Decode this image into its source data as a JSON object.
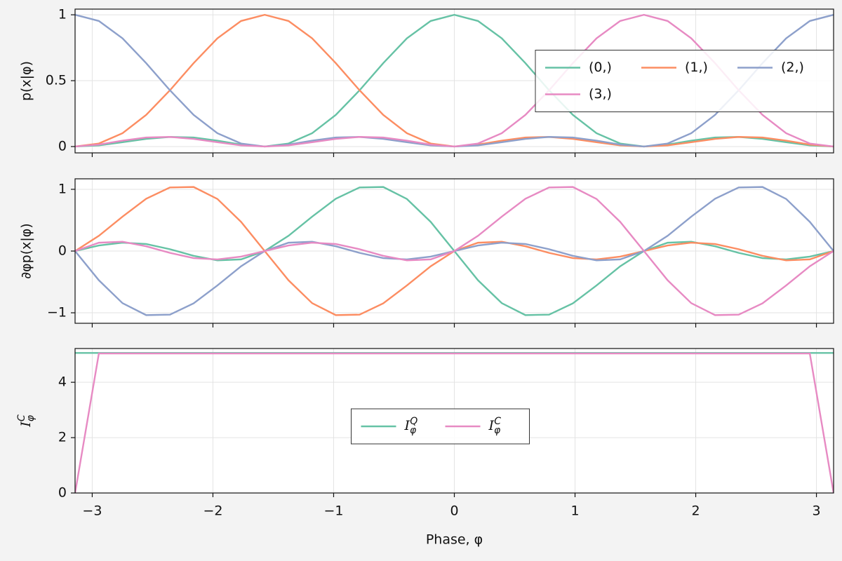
{
  "chart_data": [
    {
      "type": "line",
      "ylabel": "p(x|φ)",
      "legend_loc": "center right",
      "legend_ncol": 3,
      "grid": true,
      "xlim": [
        -3.142,
        3.142
      ],
      "xticks": [
        {
          "value": -3,
          "label": "−3"
        },
        {
          "value": -2,
          "label": "−2"
        },
        {
          "value": -1,
          "label": "−1"
        },
        0,
        1,
        2,
        3
      ],
      "ylim": [
        -0.048,
        1.043
      ],
      "yticks": [
        0,
        0.5,
        1
      ],
      "x": [
        -3.142,
        -2.945,
        -2.749,
        -2.553,
        -2.356,
        -2.16,
        -1.963,
        -1.767,
        -1.571,
        -1.374,
        -1.178,
        -0.982,
        -0.785,
        -0.589,
        -0.393,
        -0.196,
        0,
        0.196,
        0.393,
        0.589,
        0.785,
        0.982,
        1.178,
        1.374,
        1.571,
        1.767,
        1.963,
        2.16,
        2.356,
        2.553,
        2.749,
        2.945,
        3.142
      ],
      "series": [
        {
          "name": "(0,)",
          "color": "#66c2a5",
          "values": [
            0,
            0.009,
            0.033,
            0.058,
            0.073,
            0.069,
            0.045,
            0.015,
            0,
            0.023,
            0.101,
            0.24,
            0.427,
            0.633,
            0.821,
            0.953,
            1,
            0.953,
            0.821,
            0.633,
            0.427,
            0.24,
            0.101,
            0.023,
            0,
            0.015,
            0.045,
            0.069,
            0.073,
            0.058,
            0.033,
            0.009,
            0
          ]
        },
        {
          "name": "(1,)",
          "color": "#fc8d62",
          "values": [
            0,
            0.023,
            0.101,
            0.24,
            0.427,
            0.633,
            0.821,
            0.953,
            1,
            0.953,
            0.821,
            0.633,
            0.427,
            0.24,
            0.101,
            0.023,
            0,
            0.015,
            0.045,
            0.069,
            0.073,
            0.058,
            0.033,
            0.009,
            0,
            0.009,
            0.033,
            0.058,
            0.073,
            0.069,
            0.045,
            0.015,
            0
          ]
        },
        {
          "name": "(2,)",
          "color": "#8da0cb",
          "values": [
            1,
            0.953,
            0.821,
            0.633,
            0.427,
            0.24,
            0.101,
            0.023,
            0,
            0.015,
            0.045,
            0.069,
            0.073,
            0.058,
            0.033,
            0.009,
            0,
            0.009,
            0.033,
            0.058,
            0.073,
            0.069,
            0.045,
            0.015,
            0,
            0.023,
            0.101,
            0.24,
            0.427,
            0.633,
            0.821,
            0.953,
            1
          ]
        },
        {
          "name": "(3,)",
          "color": "#e78ac3",
          "values": [
            0,
            0.015,
            0.045,
            0.069,
            0.073,
            0.058,
            0.033,
            0.009,
            0,
            0.009,
            0.033,
            0.058,
            0.073,
            0.069,
            0.045,
            0.015,
            0,
            0.023,
            0.101,
            0.24,
            0.427,
            0.633,
            0.821,
            0.953,
            1,
            0.953,
            0.821,
            0.633,
            0.427,
            0.24,
            0.101,
            0.023,
            0
          ]
        }
      ]
    },
    {
      "type": "line",
      "ylabel": "∂φp(x|φ)",
      "grid": true,
      "xlim": [
        -3.142,
        3.142
      ],
      "xticks": [
        {
          "value": -3,
          "label": "−3"
        },
        {
          "value": -2,
          "label": "−2"
        },
        {
          "value": -1,
          "label": "−1"
        },
        0,
        1,
        2,
        3
      ],
      "ylim": [
        -1.17,
        1.17
      ],
      "yticks": [
        {
          "value": -1,
          "label": "−1"
        },
        0,
        1
      ],
      "x": [
        -3.142,
        -2.945,
        -2.749,
        -2.553,
        -2.356,
        -2.16,
        -1.963,
        -1.767,
        -1.571,
        -1.374,
        -1.178,
        -0.982,
        -0.785,
        -0.589,
        -0.393,
        -0.196,
        0,
        0.196,
        0.393,
        0.589,
        0.785,
        0.982,
        1.178,
        1.374,
        1.571,
        1.767,
        1.963,
        2.16,
        2.356,
        2.553,
        2.749,
        2.945,
        3.142
      ],
      "series": [
        {
          "name": "(0,)",
          "color": "#66c2a5",
          "values": [
            0,
            0.09,
            0.136,
            0.114,
            0.03,
            -0.077,
            -0.151,
            -0.135,
            0,
            0.247,
            0.557,
            0.847,
            1.03,
            1.038,
            0.844,
            0.473,
            0,
            -0.473,
            -0.844,
            -1.038,
            -1.03,
            -0.847,
            -0.557,
            -0.247,
            0,
            0.135,
            0.151,
            0.077,
            -0.03,
            -0.114,
            -0.136,
            -0.09,
            0
          ]
        },
        {
          "name": "(1,)",
          "color": "#fc8d62",
          "values": [
            0,
            0.247,
            0.557,
            0.847,
            1.03,
            1.038,
            0.844,
            0.473,
            0,
            -0.473,
            -0.844,
            -1.038,
            -1.03,
            -0.847,
            -0.557,
            -0.247,
            0,
            0.135,
            0.151,
            0.077,
            -0.03,
            -0.114,
            -0.136,
            -0.09,
            0,
            0.09,
            0.136,
            0.114,
            0.03,
            -0.077,
            -0.151,
            -0.135,
            0
          ]
        },
        {
          "name": "(2,)",
          "color": "#8da0cb",
          "values": [
            0,
            -0.473,
            -0.844,
            -1.038,
            -1.03,
            -0.847,
            -0.557,
            -0.247,
            0,
            0.135,
            0.151,
            0.077,
            -0.03,
            -0.114,
            -0.136,
            -0.09,
            0,
            0.09,
            0.136,
            0.114,
            0.03,
            -0.077,
            -0.151,
            -0.135,
            0,
            0.247,
            0.557,
            0.847,
            1.03,
            1.038,
            0.844,
            0.473,
            0
          ]
        },
        {
          "name": "(3,)",
          "color": "#e78ac3",
          "values": [
            0,
            0.135,
            0.151,
            0.077,
            -0.03,
            -0.114,
            -0.136,
            -0.09,
            0,
            0.09,
            0.136,
            0.114,
            0.03,
            -0.077,
            -0.151,
            -0.135,
            0,
            0.247,
            0.557,
            0.847,
            1.03,
            1.038,
            0.844,
            0.473,
            0,
            -0.473,
            -0.844,
            -1.038,
            -1.03,
            -0.847,
            -0.557,
            -0.247,
            0
          ]
        }
      ]
    },
    {
      "type": "line",
      "ylabel": "IφC",
      "xlabel": "Phase, φ",
      "legend_loc": "center",
      "legend_ncol": 2,
      "grid": true,
      "xlim": [
        -3.142,
        3.142
      ],
      "xticks": [
        {
          "value": -3,
          "label": "−3"
        },
        {
          "value": -2,
          "label": "−2"
        },
        {
          "value": -1,
          "label": "−1"
        },
        0,
        1,
        2,
        3
      ],
      "ylim": [
        0,
        5.22
      ],
      "yticks": [
        0,
        2,
        4
      ],
      "x": [
        -3.142,
        -2.945,
        -2.749,
        -2.553,
        -2.356,
        -2.16,
        -1.963,
        -1.767,
        -1.571,
        -1.374,
        -1.178,
        -0.982,
        -0.785,
        -0.589,
        -0.393,
        -0.196,
        0,
        0.196,
        0.393,
        0.589,
        0.785,
        0.982,
        1.178,
        1.374,
        1.571,
        1.767,
        1.963,
        2.16,
        2.356,
        2.553,
        2.749,
        2.945,
        3.142
      ],
      "series": [
        {
          "name": "IφQ",
          "color": "#66c2a5",
          "values": [
            5.06,
            5.06,
            5.06,
            5.06,
            5.06,
            5.06,
            5.06,
            5.06,
            5.06,
            5.06,
            5.06,
            5.06,
            5.06,
            5.06,
            5.06,
            5.06,
            5.06,
            5.06,
            5.06,
            5.06,
            5.06,
            5.06,
            5.06,
            5.06,
            5.06,
            5.06,
            5.06,
            5.06,
            5.06,
            5.06,
            5.06,
            5.06,
            5.06
          ]
        },
        {
          "name": "IφC",
          "color": "#e78ac3",
          "values": [
            0,
            5.04,
            5.04,
            5.04,
            5.04,
            5.04,
            5.04,
            5.04,
            5.04,
            5.04,
            5.04,
            5.04,
            5.04,
            5.04,
            5.04,
            5.04,
            5.04,
            5.04,
            5.04,
            5.04,
            5.04,
            5.04,
            5.04,
            5.04,
            5.04,
            5.04,
            5.04,
            5.04,
            5.04,
            5.04,
            5.04,
            5.04,
            0
          ]
        }
      ]
    }
  ]
}
